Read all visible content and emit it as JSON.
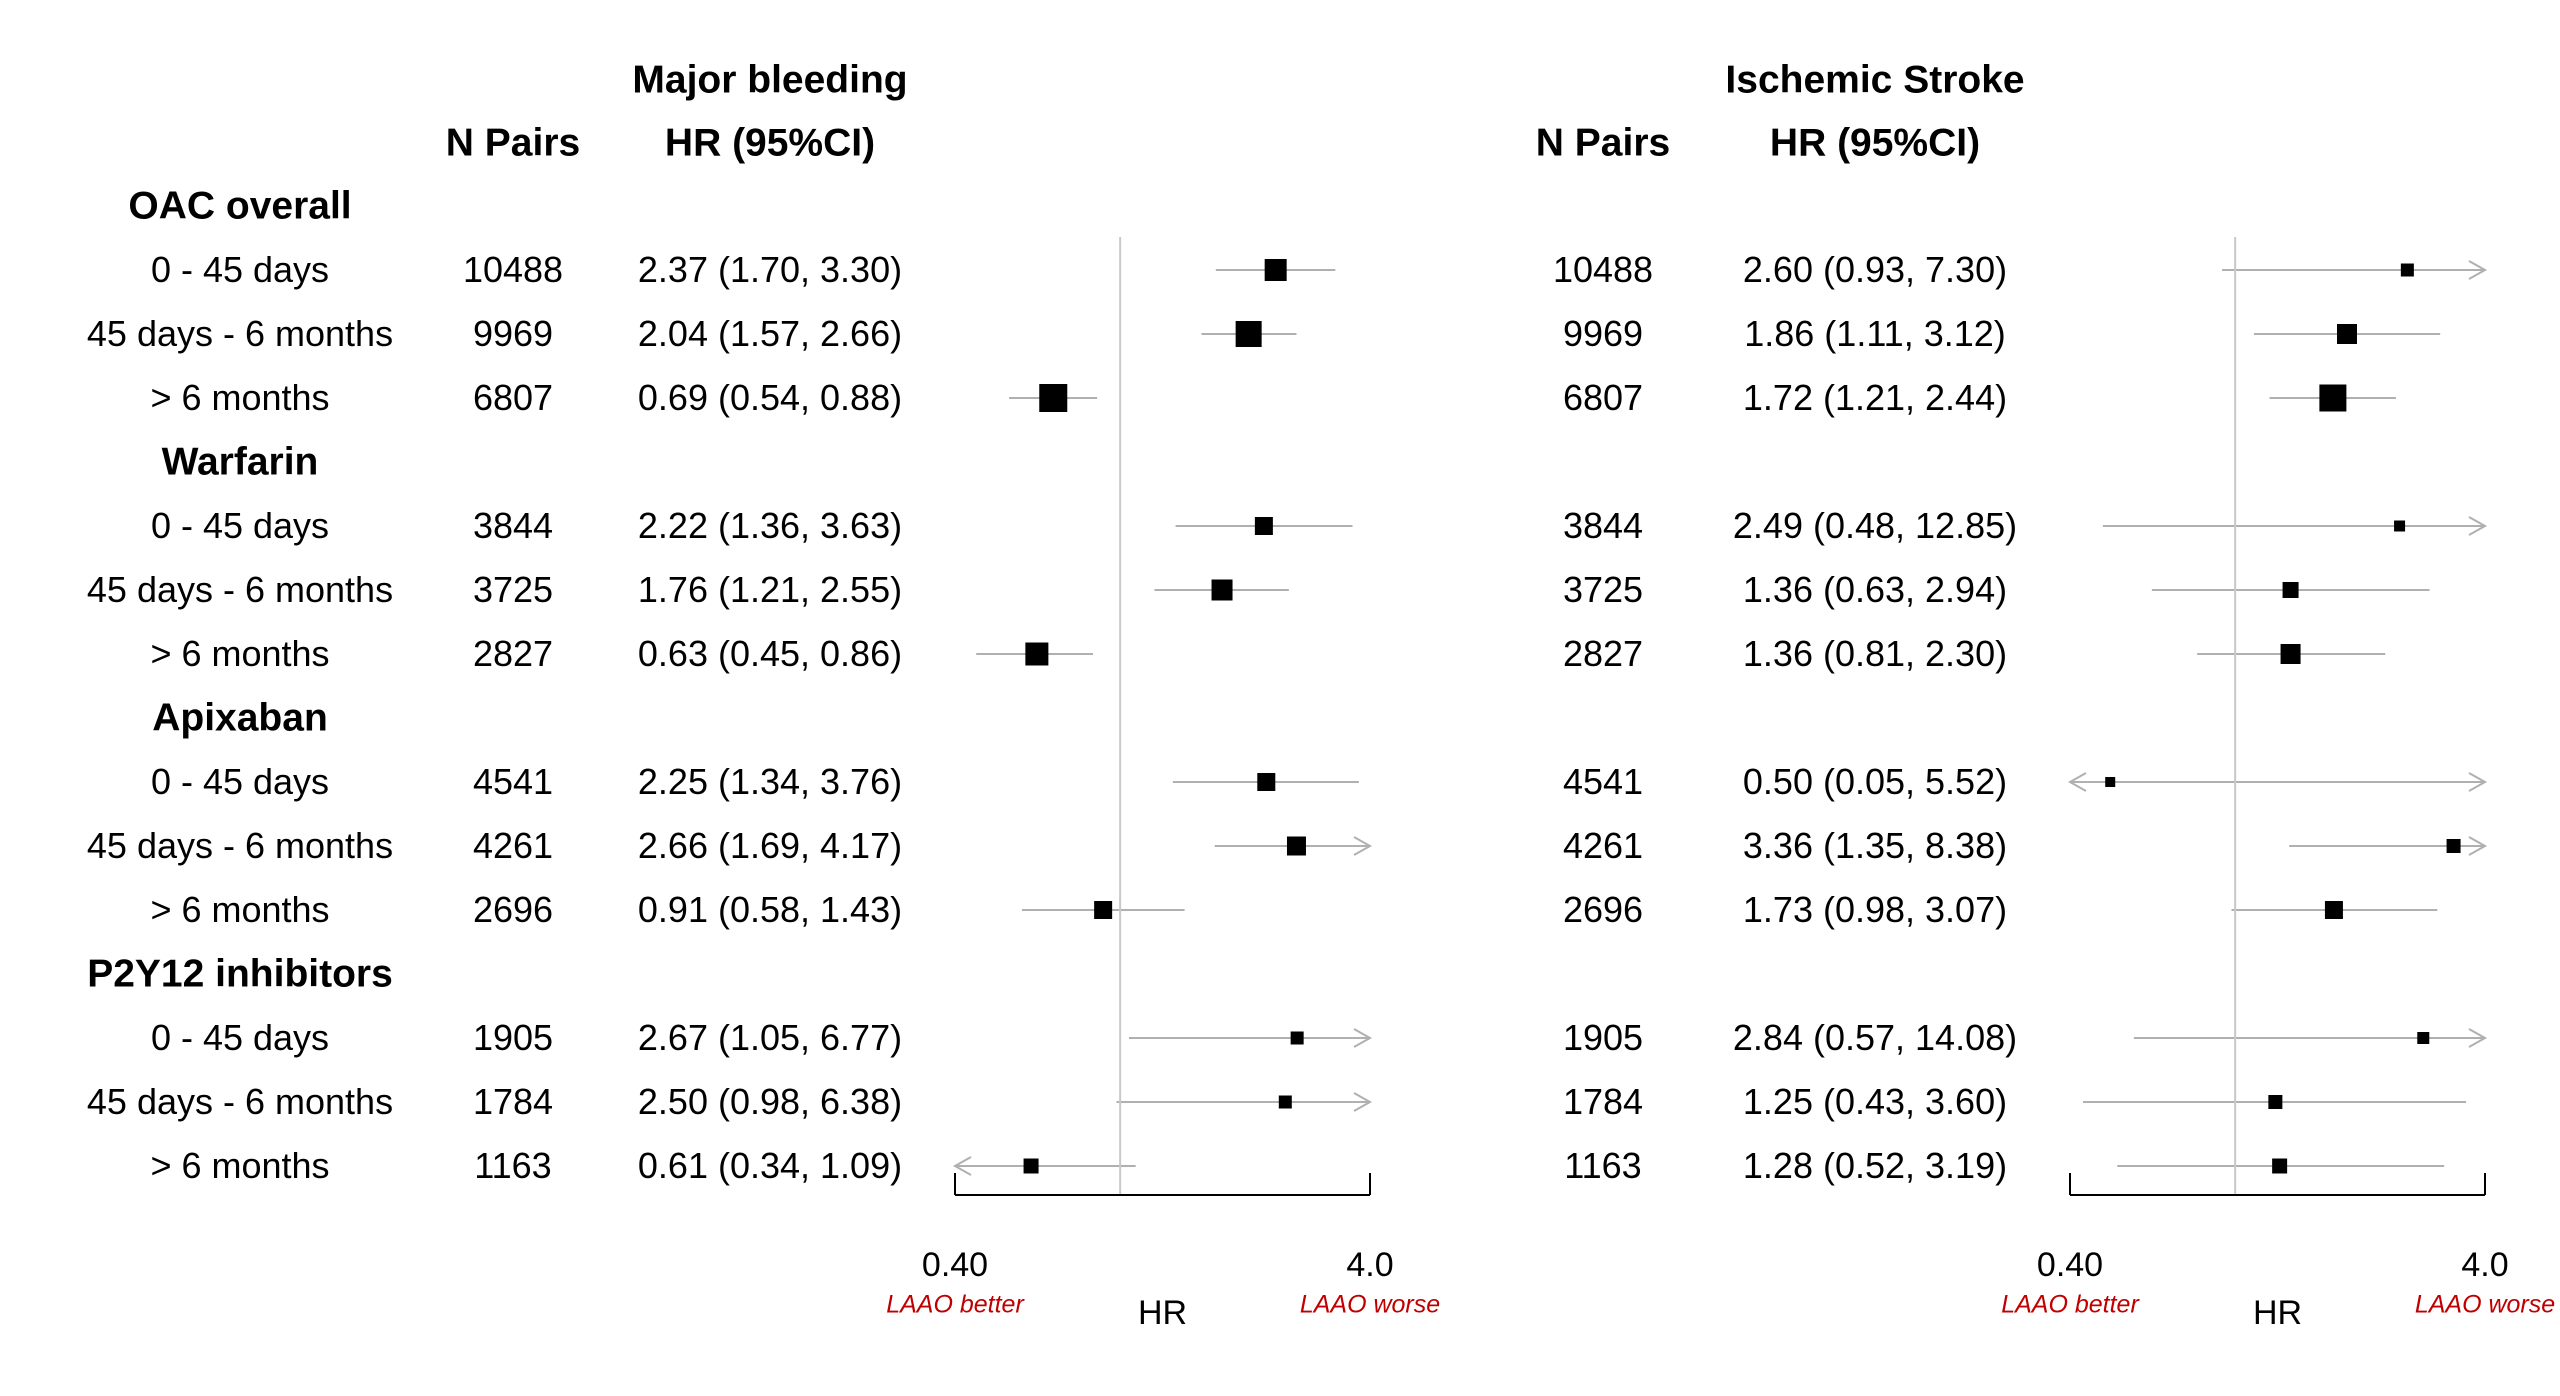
{
  "chart_data": [
    {
      "type": "forest",
      "title": "Major bleeding",
      "columns": [
        "N Pairs",
        "HR (95%CI)"
      ],
      "xlabel": "HR",
      "xscale": "log",
      "xlim": [
        0.4,
        4.0
      ],
      "xticks": [
        "0.40",
        "4.0"
      ],
      "reference_line": 1.0,
      "left_note": "LAAO better",
      "right_note": "LAAO worse",
      "groups": [
        {
          "name": "OAC overall",
          "rows": [
            {
              "label": "0 - 45 days",
              "n": "10488",
              "ci_text": "2.37 (1.70, 3.30)",
              "hr": 2.37,
              "lo": 1.7,
              "hi": 3.3,
              "size": 22
            },
            {
              "label": "45 days - 6 months",
              "n": "9969",
              "ci_text": "2.04 (1.57, 2.66)",
              "hr": 2.04,
              "lo": 1.57,
              "hi": 2.66,
              "size": 26
            },
            {
              "label": "> 6 months",
              "n": "6807",
              "ci_text": "0.69 (0.54, 0.88)",
              "hr": 0.69,
              "lo": 0.54,
              "hi": 0.88,
              "size": 28
            }
          ]
        },
        {
          "name": "Warfarin",
          "rows": [
            {
              "label": "0 - 45 days",
              "n": "3844",
              "ci_text": "2.22 (1.36, 3.63)",
              "hr": 2.22,
              "lo": 1.36,
              "hi": 3.63,
              "size": 18
            },
            {
              "label": "45 days - 6 months",
              "n": "3725",
              "ci_text": "1.76 (1.21, 2.55)",
              "hr": 1.76,
              "lo": 1.21,
              "hi": 2.55,
              "size": 21
            },
            {
              "label": "> 6 months",
              "n": "2827",
              "ci_text": "0.63 (0.45, 0.86)",
              "hr": 0.63,
              "lo": 0.45,
              "hi": 0.86,
              "size": 23
            }
          ]
        },
        {
          "name": "Apixaban",
          "rows": [
            {
              "label": "0 - 45 days",
              "n": "4541",
              "ci_text": "2.25 (1.34, 3.76)",
              "hr": 2.25,
              "lo": 1.34,
              "hi": 3.76,
              "size": 18
            },
            {
              "label": "45 days - 6 months",
              "n": "4261",
              "ci_text": "2.66 (1.69, 4.17)",
              "hr": 2.66,
              "lo": 1.69,
              "hi": 4.17,
              "size": 19
            },
            {
              "label": "> 6 months",
              "n": "2696",
              "ci_text": "0.91 (0.58, 1.43)",
              "hr": 0.91,
              "lo": 0.58,
              "hi": 1.43,
              "size": 18
            }
          ]
        },
        {
          "name": "P2Y12 inhibitors",
          "rows": [
            {
              "label": "0 - 45 days",
              "n": "1905",
              "ci_text": "2.67 (1.05, 6.77)",
              "hr": 2.67,
              "lo": 1.05,
              "hi": 6.77,
              "size": 13
            },
            {
              "label": "45 days - 6 months",
              "n": "1784",
              "ci_text": "2.50 (0.98, 6.38)",
              "hr": 2.5,
              "lo": 0.98,
              "hi": 6.38,
              "size": 13
            },
            {
              "label": "> 6 months",
              "n": "1163",
              "ci_text": "0.61 (0.34, 1.09)",
              "hr": 0.61,
              "lo": 0.34,
              "hi": 1.09,
              "size": 15
            }
          ]
        }
      ]
    },
    {
      "type": "forest",
      "title": "Ischemic Stroke",
      "columns": [
        "N Pairs",
        "HR (95%CI)"
      ],
      "xlabel": "HR",
      "xscale": "log",
      "xlim": [
        0.4,
        4.0
      ],
      "xticks": [
        "0.40",
        "4.0"
      ],
      "reference_line": 1.0,
      "left_note": "LAAO better",
      "right_note": "LAAO worse",
      "groups": [
        {
          "name": "OAC overall",
          "rows": [
            {
              "label": "0 - 45 days",
              "n": "10488",
              "ci_text": "2.60 (0.93, 7.30)",
              "hr": 2.6,
              "lo": 0.93,
              "hi": 7.3,
              "size": 13
            },
            {
              "label": "45 days - 6 months",
              "n": "9969",
              "ci_text": "1.86 (1.11, 3.12)",
              "hr": 1.86,
              "lo": 1.11,
              "hi": 3.12,
              "size": 20
            },
            {
              "label": "> 6 months",
              "n": "6807",
              "ci_text": "1.72 (1.21, 2.44)",
              "hr": 1.72,
              "lo": 1.21,
              "hi": 2.44,
              "size": 27
            }
          ]
        },
        {
          "name": "Warfarin",
          "rows": [
            {
              "label": "0 - 45 days",
              "n": "3844",
              "ci_text": "2.49 (0.48, 12.85)",
              "hr": 2.49,
              "lo": 0.48,
              "hi": 12.85,
              "size": 11
            },
            {
              "label": "45 days - 6 months",
              "n": "3725",
              "ci_text": "1.36 (0.63, 2.94)",
              "hr": 1.36,
              "lo": 0.63,
              "hi": 2.94,
              "size": 16
            },
            {
              "label": "> 6 months",
              "n": "2827",
              "ci_text": "1.36 (0.81, 2.30)",
              "hr": 1.36,
              "lo": 0.81,
              "hi": 2.3,
              "size": 20
            }
          ]
        },
        {
          "name": "Apixaban",
          "rows": [
            {
              "label": "0 - 45 days",
              "n": "4541",
              "ci_text": "0.50 (0.05, 5.52)",
              "hr": 0.5,
              "lo": 0.05,
              "hi": 5.52,
              "size": 10
            },
            {
              "label": "45 days - 6 months",
              "n": "4261",
              "ci_text": "3.36 (1.35, 8.38)",
              "hr": 3.36,
              "lo": 1.35,
              "hi": 8.38,
              "size": 14
            },
            {
              "label": "> 6 months",
              "n": "2696",
              "ci_text": "1.73 (0.98, 3.07)",
              "hr": 1.73,
              "lo": 0.98,
              "hi": 3.07,
              "size": 18
            }
          ]
        },
        {
          "name": "P2Y12 inhibitors",
          "rows": [
            {
              "label": "0 - 45 days",
              "n": "1905",
              "ci_text": "2.84 (0.57, 14.08)",
              "hr": 2.84,
              "lo": 0.57,
              "hi": 14.08,
              "size": 12
            },
            {
              "label": "45 days - 6 months",
              "n": "1784",
              "ci_text": "1.25 (0.43, 3.60)",
              "hr": 1.25,
              "lo": 0.43,
              "hi": 3.6,
              "size": 14
            },
            {
              "label": "> 6 months",
              "n": "1163",
              "ci_text": "1.28 (0.52, 3.19)",
              "hr": 1.28,
              "lo": 0.52,
              "hi": 3.19,
              "size": 15
            }
          ]
        }
      ]
    }
  ],
  "colors": {
    "marker": "#000000",
    "ci_line": "#b0b0b0",
    "ref_line": "#c8c8c8",
    "axis": "#000000",
    "note": "#c00000"
  }
}
